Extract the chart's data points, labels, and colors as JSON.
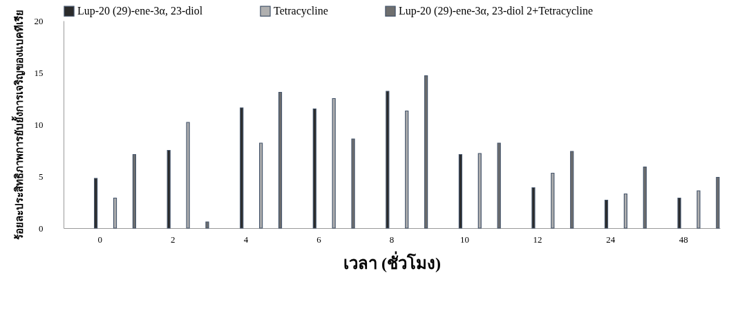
{
  "chart_data": {
    "type": "bar",
    "xlabel": "เวลา (ชั่วโมง)",
    "ylabel": "ร้อยละประสิทธิภาพการยับยั้งการเจริญของแบคทีเรีย",
    "categories": [
      "0",
      "2",
      "4",
      "6",
      "8",
      "10",
      "12",
      "24",
      "48"
    ],
    "series": [
      {
        "name": "Lup-20 (29)-ene-3α, 23-diol",
        "color": "#2b2b2b",
        "values": [
          4.8,
          7.5,
          11.6,
          11.5,
          13.2,
          7.1,
          3.9,
          2.7,
          2.9
        ]
      },
      {
        "name": "Tetracycline",
        "color": "#b0b0b0",
        "values": [
          2.9,
          10.2,
          8.2,
          12.5,
          11.3,
          7.2,
          5.3,
          3.3,
          3.6
        ]
      },
      {
        "name": "Lup-20 (29)-ene-3α, 23-diol 2+Tetracycline",
        "color": "#6e6e6e",
        "values": [
          7.1,
          0.6,
          13.1,
          8.6,
          14.7,
          8.2,
          7.4,
          5.9,
          4.9
        ]
      }
    ],
    "ylim": [
      0,
      20
    ],
    "yticks": [
      0,
      5,
      10,
      15,
      20
    ],
    "grid": false,
    "legend": "top"
  }
}
